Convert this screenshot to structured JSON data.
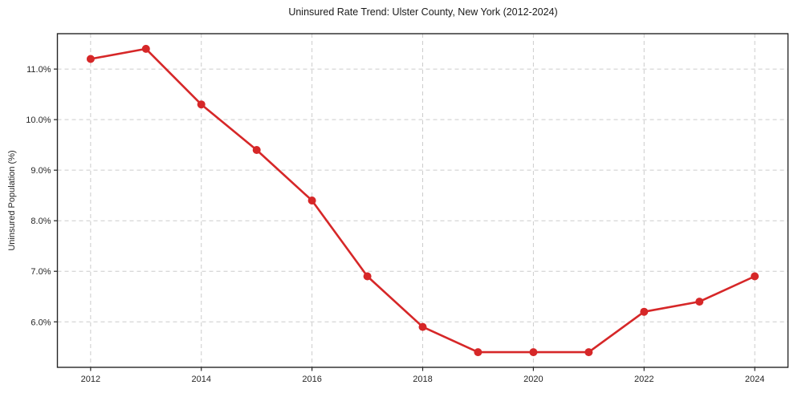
{
  "chart_data": {
    "type": "line",
    "title": "Uninsured Rate Trend: Ulster County, New York (2012-2024)",
    "ylabel": "Uninsured Population (%)",
    "xlabel": "",
    "x": [
      2012,
      2013,
      2014,
      2015,
      2016,
      2017,
      2018,
      2019,
      2020,
      2021,
      2022,
      2023,
      2024
    ],
    "values": [
      11.2,
      11.4,
      10.3,
      9.4,
      8.4,
      6.9,
      5.9,
      5.4,
      5.4,
      5.4,
      6.2,
      6.4,
      6.9
    ],
    "xticks": [
      2012,
      2014,
      2016,
      2018,
      2020,
      2022,
      2024
    ],
    "xtick_labels": [
      "2012",
      "2014",
      "2016",
      "2018",
      "2020",
      "2022",
      "2024"
    ],
    "yticks": [
      6,
      7,
      8,
      9,
      10,
      11
    ],
    "ytick_labels": [
      "6.0%",
      "7.0%",
      "8.0%",
      "9.0%",
      "10.0%",
      "11.0%"
    ],
    "xlim": [
      2011.4,
      2024.6
    ],
    "ylim": [
      5.1,
      11.7
    ],
    "grid": true,
    "grid_style": "dashed",
    "legend": "none",
    "line_color": "#d62728",
    "marker_color": "#d62728",
    "grid_color": "#cccccc",
    "axis_color": "#262626",
    "background_color": "#ffffff"
  }
}
